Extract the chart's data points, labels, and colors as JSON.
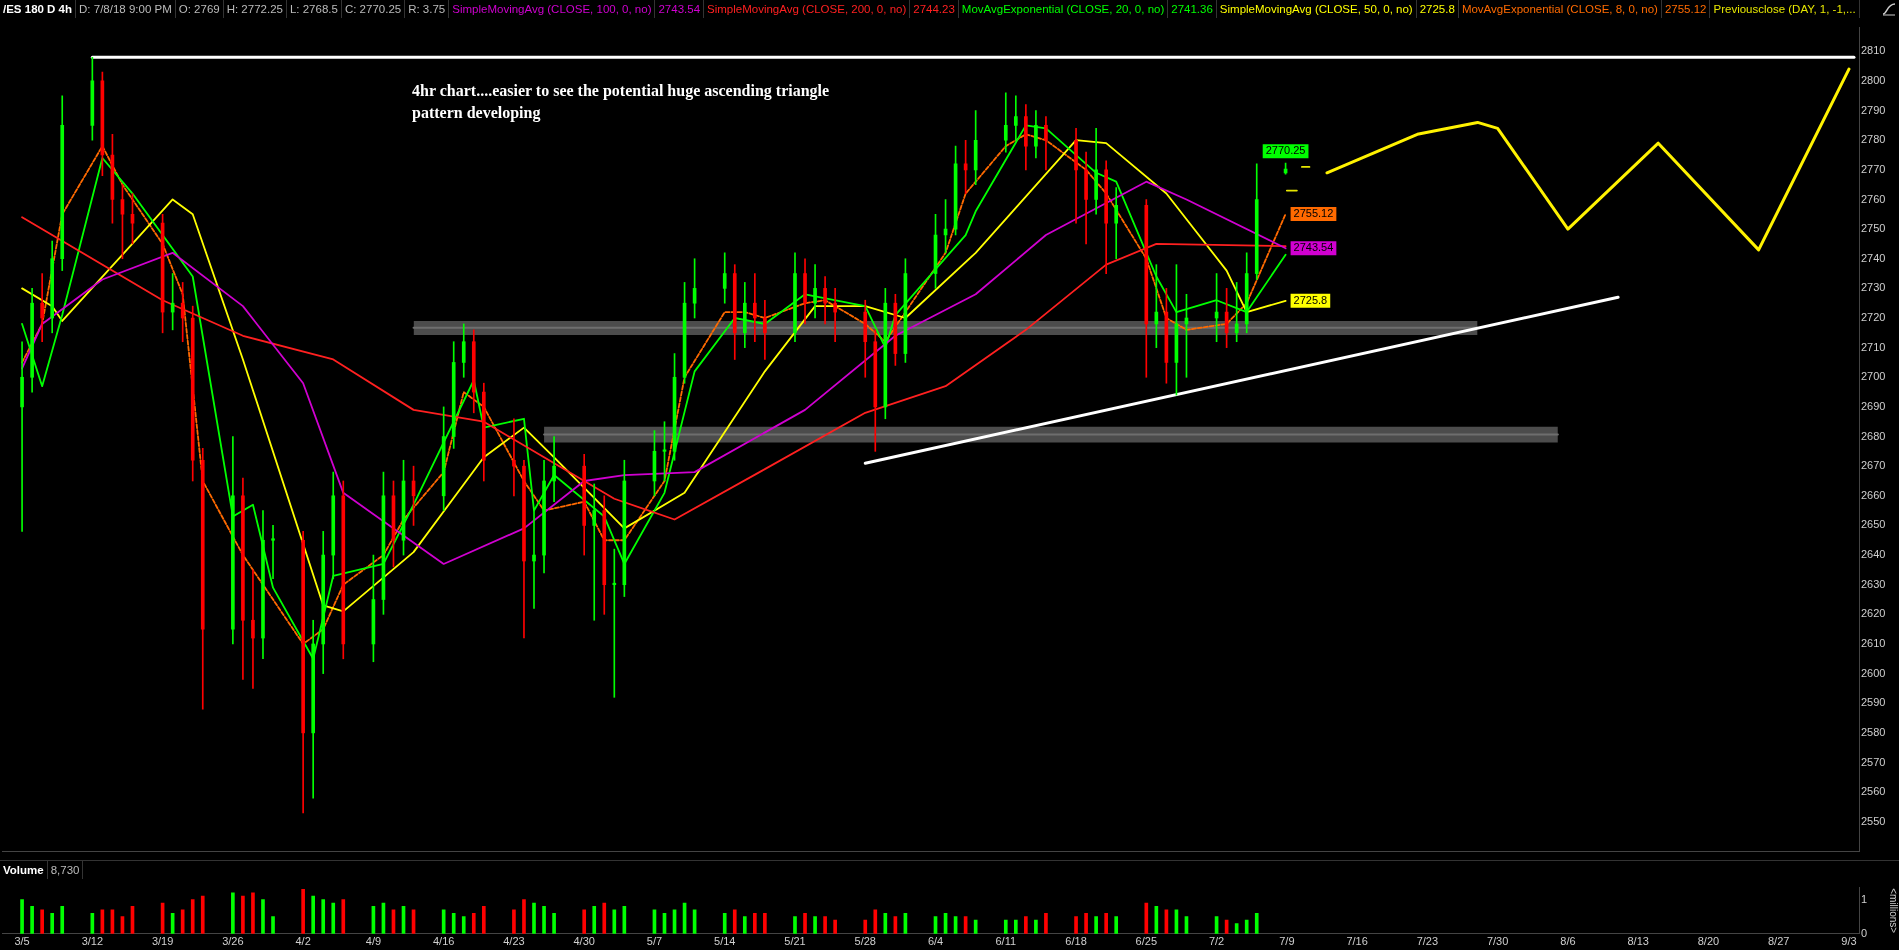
{
  "chart_data": [
    {
      "type": "candlestick",
      "title": "/ES 180 D 4h",
      "legend": "top",
      "tick_labels": "y",
      "annotations": [
        "D: 7/8/18 9:00 PM",
        "O: 2769",
        "H: 2772.25",
        "L: 2768.5",
        "C: 2770.25",
        "R: 3.75",
        "4hr chart....easier to see the potential huge ascending triangle pattern developing",
        "2743.54",
        "2744.23",
        "2741.36",
        "2725.8",
        "2755.12"
      ],
      "xlim": [
        "--03-03",
        "--09-04"
      ],
      "ylim": [
        2540,
        2818
      ],
      "yticks": [
        2550,
        2560,
        2570,
        2580,
        2590,
        2600,
        2610,
        2620,
        2630,
        2640,
        2650,
        2660,
        2670,
        2680,
        2690,
        2700,
        2710,
        2720,
        2730,
        2740,
        2750,
        2760,
        2770,
        2780,
        2790,
        2800,
        2810
      ],
      "series": [
        {
          "type": "line",
          "color": "#6e6e6e",
          "x": [
            "--04-13",
            "--07-28"
          ],
          "values": [
            2716.7,
            2716.7
          ],
          "lower": [
            2714.3,
            2714.3
          ],
          "upper": [
            2719,
            2719
          ]
        },
        {
          "type": "line",
          "color": "#6e6e6e",
          "x": [
            "--04-26",
            "--08-05"
          ],
          "values": [
            2680.7,
            2680.7
          ],
          "lower": [
            2678,
            2678
          ],
          "upper": [
            2683.3,
            2683.3
          ]
        },
        {
          "type": "line",
          "color": "#ffffff",
          "x": [
            "--03-12",
            "--09-03T12:00"
          ],
          "values": [
            2808,
            2808
          ]
        },
        {
          "type": "line",
          "color": "#ffffff",
          "x": [
            "--05-28",
            "--08-11"
          ],
          "values": [
            2671,
            2727
          ]
        },
        {
          "type": "line",
          "color": "#fff200",
          "x": [
            "--07-13",
            "--07-22",
            "--07-28",
            "--07-30",
            "--08-06",
            "--08-15",
            "--08-25",
            "--09-03"
          ],
          "values": [
            2769,
            2782,
            2786,
            2784,
            2750,
            2779,
            2743,
            2804
          ]
        },
        {
          "type": "line",
          "name": "SimpleMovingAvg (CLOSE, 100, 0, no)",
          "color": "#d000d0",
          "x": [
            "--03-05",
            "--03-07",
            "--03-13",
            "--03-20",
            "--03-27",
            "--04-02",
            "--04-06",
            "--04-16",
            "--04-24",
            "--04-30",
            "--05-04",
            "--05-11",
            "--05-22",
            "--05-31",
            "--06-08",
            "--06-15",
            "--06-25",
            "--06-29",
            "--07-08T21:00"
          ],
          "values": [
            2703,
            2718,
            2733,
            2742,
            2724,
            2698,
            2661,
            2637,
            2649,
            2665,
            2667,
            2668,
            2689,
            2714,
            2728,
            2748,
            2766,
            2760,
            2743.54
          ],
          "value_labels": [
            null,
            null,
            null,
            null,
            null,
            null,
            null,
            null,
            null,
            null,
            null,
            null,
            null,
            null,
            null,
            null,
            null,
            null,
            "2743.54"
          ]
        },
        {
          "type": "line",
          "name": "SimpleMovingAvg (CLOSE, 200, 0, no)",
          "color": "#ff2020",
          "x": [
            "--03-05",
            "--03-19",
            "--03-27",
            "--04-05",
            "--04-13",
            "--04-20",
            "--04-26",
            "--05-03",
            "--05-09",
            "--05-18",
            "--05-28",
            "--06-05",
            "--06-13",
            "--06-21",
            "--06-26",
            "--07-08T21:00"
          ],
          "values": [
            2754,
            2726,
            2714,
            2706,
            2689,
            2685,
            2673,
            2659,
            2652,
            2669,
            2688,
            2697,
            2716,
            2738,
            2745,
            2744.23
          ]
        },
        {
          "type": "line",
          "name": "MovAvgExponential (CLOSE, 20, 0, no)",
          "color": "#00ff00",
          "x": [
            "--03-05",
            "--03-07",
            "--03-09",
            "--03-13",
            "--03-16",
            "--03-22",
            "--03-26",
            "--03-28",
            "--03-30",
            "--04-03",
            "--04-05",
            "--04-10",
            "--04-13",
            "--04-19",
            "--04-20",
            "--04-24",
            "--04-25",
            "--04-27",
            "--05-02",
            "--05-04",
            "--05-08",
            "--05-11",
            "--05-15",
            "--05-18",
            "--05-22",
            "--05-28",
            "--05-30",
            "--05-31",
            "--06-07",
            "--06-08",
            "--06-13",
            "--06-15",
            "--06-20",
            "--06-22",
            "--06-26",
            "--06-28",
            "--07-02",
            "--07-05",
            "--07-08T21:00"
          ],
          "values": [
            2718,
            2697,
            2721,
            2774,
            2762,
            2734,
            2653,
            2657,
            2629,
            2605,
            2633,
            2637,
            2657,
            2699,
            2683,
            2686,
            2655,
            2667,
            2653,
            2637,
            2661,
            2702,
            2720,
            2718,
            2728,
            2724,
            2710,
            2721,
            2748,
            2756,
            2785,
            2784,
            2769,
            2766,
            2734,
            2722,
            2726,
            2722,
            2741.36
          ]
        },
        {
          "type": "line",
          "name": "SimpleMovingAvg (CLOSE, 50, 0, no)",
          "color": "#ffff00",
          "x": [
            "--03-05",
            "--03-08",
            "--03-09",
            "--03-20",
            "--03-22",
            "--03-27",
            "--04-04",
            "--04-06",
            "--04-13",
            "--04-20",
            "--04-24",
            "--04-27",
            "--05-04",
            "--05-10",
            "--05-18",
            "--05-23",
            "--05-28",
            "--06-01",
            "--06-08",
            "--06-18",
            "--06-21",
            "--06-27",
            "--07-03",
            "--07-05",
            "--07-08T21:00"
          ],
          "values": [
            2730,
            2724,
            2719,
            2760,
            2755,
            2706,
            2623,
            2621,
            2641,
            2673,
            2683,
            2673,
            2649,
            2661,
            2702,
            2724,
            2724,
            2720,
            2742,
            2780,
            2779,
            2762,
            2736,
            2722,
            2725.8
          ],
          "value_labels": [
            null,
            null,
            null,
            null,
            null,
            null,
            null,
            null,
            null,
            null,
            null,
            null,
            null,
            null,
            null,
            null,
            null,
            null,
            null,
            null,
            null,
            null,
            null,
            null,
            "2725.8"
          ]
        },
        {
          "type": "line",
          "name": "MovAvgExponential (CLOSE, 8, 0, no)",
          "color": "#ff6a00",
          "line_style": "dashed",
          "x": [
            "--03-05",
            "--03-07",
            "--03-09",
            "--03-13",
            "--03-15",
            "--03-19",
            "--03-21",
            "--03-23",
            "--03-27",
            "--03-29",
            "--04-02",
            "--04-04",
            "--04-06",
            "--04-10",
            "--04-12",
            "--04-16",
            "--04-18",
            "--04-20",
            "--04-24",
            "--04-26",
            "--04-30",
            "--05-02",
            "--05-04",
            "--05-08",
            "--05-10",
            "--05-14",
            "--05-16",
            "--05-18",
            "--05-22",
            "--05-24",
            "--05-28",
            "--05-30",
            "--06-01",
            "--06-05",
            "--06-07",
            "--06-11",
            "--06-13",
            "--06-15",
            "--06-19",
            "--06-21",
            "--06-25",
            "--06-27",
            "--06-29",
            "--07-03",
            "--07-05",
            "--07-08T21:00"
          ],
          "values": [
            2705,
            2718,
            2755,
            2778,
            2765,
            2745,
            2728,
            2665,
            2640,
            2630,
            2610,
            2615,
            2630,
            2640,
            2652,
            2668,
            2695,
            2690,
            2665,
            2655,
            2658,
            2645,
            2645,
            2665,
            2700,
            2722,
            2722,
            2720,
            2725,
            2726,
            2718,
            2712,
            2722,
            2742,
            2762,
            2778,
            2782,
            2780,
            2770,
            2762,
            2740,
            2720,
            2716,
            2718,
            2725,
            2755.12
          ],
          "value_labels": [
            null,
            null,
            null,
            null,
            null,
            null,
            null,
            null,
            null,
            null,
            null,
            null,
            null,
            null,
            null,
            null,
            null,
            null,
            null,
            null,
            null,
            null,
            null,
            null,
            null,
            null,
            null,
            null,
            null,
            null,
            null,
            null,
            null,
            null,
            null,
            null,
            null,
            null,
            null,
            null,
            null,
            null,
            null,
            null,
            null,
            "2755.12"
          ]
        },
        {
          "type": "line",
          "name": "Previousclose (DAY, 1, -1,...",
          "color": "#e6e600",
          "x": [
            "--07-09T00:00",
            "--07-10T00:00",
            "--07-10T06:00",
            "--07-10T12:00",
            "--07-11T06:00"
          ],
          "values": [
            2763,
            2763,
            null,
            2771,
            2771
          ]
        },
        {
          "type": "candlestick",
          "value_labels": [
            null,
            null,
            null,
            null,
            null,
            null,
            null,
            null,
            null,
            null,
            null,
            null,
            null,
            null,
            null,
            null,
            null,
            null,
            null,
            null,
            null,
            null,
            null,
            null,
            null,
            null,
            null,
            null,
            null,
            null,
            null,
            null,
            null,
            null,
            null,
            null,
            null,
            null,
            null,
            null,
            null,
            null,
            null,
            null,
            null,
            null,
            null,
            null,
            null,
            null,
            null,
            null,
            null,
            null,
            null,
            null,
            null,
            null,
            null,
            null,
            null,
            null,
            null,
            null,
            null,
            null,
            null,
            null,
            null,
            null,
            null,
            null,
            null,
            null,
            null,
            null,
            null,
            null,
            null,
            null,
            null,
            null,
            null,
            null,
            null,
            null,
            null,
            null,
            null,
            null,
            "2770.25"
          ],
          "x": [
            "--03-05",
            "--03-06",
            "--03-07",
            "--03-08",
            "--03-09",
            "--03-12",
            "--03-13",
            "--03-14",
            "--03-15",
            "--03-16",
            "--03-19",
            "--03-20",
            "--03-21",
            "--03-22",
            "--03-23",
            "--03-26",
            "--03-27",
            "--03-28",
            "--03-29",
            "--03-30",
            "--04-02",
            "--04-03",
            "--04-04",
            "--04-05",
            "--04-06",
            "--04-09",
            "--04-10",
            "--04-11",
            "--04-12",
            "--04-13",
            "--04-16",
            "--04-17",
            "--04-18",
            "--04-19",
            "--04-20",
            "--04-23",
            "--04-24",
            "--04-25",
            "--04-26",
            "--04-27",
            "--04-30",
            "--05-01",
            "--05-02",
            "--05-03",
            "--05-04",
            "--05-07",
            "--05-08",
            "--05-09",
            "--05-10",
            "--05-11",
            "--05-14",
            "--05-15",
            "--05-16",
            "--05-17",
            "--05-18",
            "--05-21",
            "--05-22",
            "--05-23",
            "--05-24",
            "--05-25",
            "--05-28",
            "--05-29",
            "--05-30",
            "--05-31",
            "--06-01",
            "--06-04",
            "--06-05",
            "--06-06",
            "--06-07",
            "--06-08",
            "--06-11",
            "--06-12",
            "--06-13",
            "--06-14",
            "--06-15",
            "--06-18",
            "--06-19",
            "--06-20",
            "--06-21",
            "--06-22",
            "--06-25",
            "--06-26",
            "--06-27",
            "--06-28",
            "--06-29",
            "--07-02",
            "--07-03",
            "--07-04",
            "--07-05",
            "--07-06",
            "--07-08T21:00"
          ],
          "colors": [
            "#00ff00",
            "#00ff00",
            "#ff0000",
            "#00ff00",
            "#00ff00",
            "#00ff00",
            "#ff0000",
            "#ff0000",
            "#ff0000",
            "#ff0000",
            "#ff0000",
            "#00ff00",
            "#ff0000",
            "#ff0000",
            "#ff0000",
            "#00ff00",
            "#ff0000",
            "#ff0000",
            "#00ff00",
            "#00ff00",
            "#ff0000",
            "#00ff00",
            "#00ff00",
            "#00ff00",
            "#ff0000",
            "#00ff00",
            "#00ff00",
            "#ff0000",
            "#00ff00",
            "#ff0000",
            "#00ff00",
            "#00ff00",
            "#00ff00",
            "#ff0000",
            "#ff0000",
            "#ff0000",
            "#ff0000",
            "#00ff00",
            "#00ff00",
            "#00ff00",
            "#ff0000",
            "#00ff00",
            "#ff0000",
            "#00ff00",
            "#00ff00",
            "#00ff00",
            "#00ff00",
            "#00ff00",
            "#00ff00",
            "#00ff00",
            "#00ff00",
            "#ff0000",
            "#00ff00",
            "#ff0000",
            "#ff0000",
            "#00ff00",
            "#ff0000",
            "#00ff00",
            "#ff0000",
            "#ff0000",
            "#ff0000",
            "#ff0000",
            "#00ff00",
            "#ff0000",
            "#00ff00",
            "#00ff00",
            "#00ff00",
            "#00ff00",
            "#ff0000",
            "#00ff00",
            "#00ff00",
            "#00ff00",
            "#ff0000",
            "#00ff00",
            "#ff0000",
            "#ff0000",
            "#ff0000",
            "#00ff00",
            "#ff0000",
            "#00ff00",
            "#ff0000",
            "#00ff00",
            "#ff0000",
            "#00ff00",
            "#00ff00",
            "#00ff00",
            "#ff0000",
            "#00ff00",
            "#00ff00",
            "#00ff00",
            "#00ff00"
          ],
          "ohlc": [
            [
              2690,
              2712,
              2648,
              2700
            ],
            [
              2700,
              2730,
              2695,
              2725
            ],
            [
              2725,
              2735,
              2712,
              2720
            ],
            [
              2720,
              2746,
              2715,
              2740
            ],
            [
              2740,
              2795,
              2736,
              2785
            ],
            [
              2785,
              2808,
              2780,
              2800
            ],
            [
              2800,
              2803,
              2768,
              2775
            ],
            [
              2775,
              2782,
              2752,
              2760
            ],
            [
              2760,
              2765,
              2740,
              2755
            ],
            [
              2755,
              2762,
              2745,
              2752
            ],
            [
              2752,
              2755,
              2715,
              2722
            ],
            [
              2722,
              2735,
              2716,
              2725
            ],
            [
              2725,
              2732,
              2712,
              2720
            ],
            [
              2720,
              2724,
              2665,
              2672
            ],
            [
              2672,
              2676,
              2588,
              2615
            ],
            [
              2615,
              2680,
              2610,
              2660
            ],
            [
              2660,
              2666,
              2598,
              2618
            ],
            [
              2618,
              2635,
              2595,
              2612
            ],
            [
              2612,
              2655,
              2605,
              2645
            ],
            [
              2645,
              2650,
              2632,
              2645
            ],
            [
              2645,
              2648,
              2553,
              2580
            ],
            [
              2580,
              2618,
              2558,
              2610
            ],
            [
              2610,
              2648,
              2600,
              2640
            ],
            [
              2640,
              2668,
              2632,
              2660
            ],
            [
              2660,
              2665,
              2605,
              2610
            ],
            [
              2610,
              2640,
              2604,
              2625
            ],
            [
              2625,
              2668,
              2620,
              2660
            ],
            [
              2660,
              2665,
              2636,
              2645
            ],
            [
              2645,
              2672,
              2640,
              2665
            ],
            [
              2665,
              2670,
              2650,
              2660
            ],
            [
              2660,
              2690,
              2655,
              2680
            ],
            [
              2680,
              2712,
              2676,
              2705
            ],
            [
              2705,
              2718,
              2700,
              2712
            ],
            [
              2712,
              2716,
              2688,
              2695
            ],
            [
              2695,
              2698,
              2665,
              2672
            ],
            [
              2672,
              2686,
              2660,
              2670
            ],
            [
              2670,
              2672,
              2612,
              2638
            ],
            [
              2638,
              2655,
              2622,
              2640
            ],
            [
              2640,
              2672,
              2634,
              2665
            ],
            [
              2665,
              2680,
              2658,
              2670
            ],
            [
              2670,
              2674,
              2640,
              2650
            ],
            [
              2650,
              2664,
              2618,
              2655
            ],
            [
              2655,
              2660,
              2620,
              2630
            ],
            [
              2630,
              2642,
              2592,
              2630
            ],
            [
              2630,
              2672,
              2626,
              2665
            ],
            [
              2665,
              2682,
              2660,
              2675
            ],
            [
              2675,
              2685,
              2665,
              2675
            ],
            [
              2675,
              2708,
              2672,
              2700
            ],
            [
              2700,
              2732,
              2698,
              2725
            ],
            [
              2725,
              2740,
              2720,
              2730
            ],
            [
              2730,
              2742,
              2725,
              2735
            ],
            [
              2735,
              2738,
              2706,
              2715
            ],
            [
              2715,
              2732,
              2710,
              2725
            ],
            [
              2725,
              2735,
              2712,
              2720
            ],
            [
              2720,
              2726,
              2706,
              2715
            ],
            [
              2715,
              2742,
              2712,
              2735
            ],
            [
              2735,
              2740,
              2718,
              2725
            ],
            [
              2725,
              2738,
              2720,
              2730
            ],
            [
              2730,
              2734,
              2718,
              2725
            ],
            [
              2725,
              2730,
              2712,
              2722
            ],
            [
              2722,
              2726,
              2700,
              2712
            ],
            [
              2712,
              2716,
              2675,
              2690
            ],
            [
              2690,
              2730,
              2686,
              2725
            ],
            [
              2725,
              2728,
              2704,
              2708
            ],
            [
              2708,
              2740,
              2705,
              2735
            ],
            [
              2735,
              2755,
              2730,
              2748
            ],
            [
              2748,
              2760,
              2742,
              2750
            ],
            [
              2750,
              2778,
              2748,
              2772
            ],
            [
              2772,
              2780,
              2762,
              2770
            ],
            [
              2770,
              2790,
              2765,
              2780
            ],
            [
              2780,
              2796,
              2776,
              2785
            ],
            [
              2785,
              2795,
              2780,
              2788
            ],
            [
              2788,
              2792,
              2770,
              2778
            ],
            [
              2778,
              2790,
              2774,
              2785
            ],
            [
              2785,
              2788,
              2770,
              2780
            ],
            [
              2780,
              2784,
              2752,
              2770
            ],
            [
              2770,
              2776,
              2745,
              2760
            ],
            [
              2760,
              2784,
              2755,
              2770
            ],
            [
              2770,
              2773,
              2735,
              2752
            ],
            [
              2752,
              2764,
              2740,
              2758
            ],
            [
              2758,
              2760,
              2700,
              2718
            ],
            [
              2718,
              2738,
              2710,
              2722
            ],
            [
              2722,
              2730,
              2698,
              2705
            ],
            [
              2705,
              2738,
              2694,
              2718
            ],
            [
              2718,
              2728,
              2700,
              2720
            ],
            [
              2720,
              2735,
              2712,
              2722
            ],
            [
              2722,
              2730,
              2710,
              2715
            ],
            [
              2715,
              2732,
              2712,
              2718
            ],
            [
              2718,
              2742,
              2715,
              2735
            ],
            [
              2735,
              2772,
              2733,
              2760
            ],
            [
              2769,
              2772.25,
              2768.5,
              2770.25
            ]
          ]
        }
      ]
    },
    {
      "type": "bar",
      "title": "Volume",
      "annotations": [
        "8,730"
      ],
      "ylabel": "<millions>",
      "xlim": [
        "--03-03",
        "--09-04"
      ],
      "xticks": [
        {
          "value": "--03-05",
          "label": "3/5"
        },
        {
          "value": "--03-12",
          "label": "3/12"
        },
        {
          "value": "--03-19",
          "label": "3/19"
        },
        {
          "value": "--03-26",
          "label": "3/26"
        },
        {
          "value": "--04-02",
          "label": "4/2"
        },
        {
          "value": "--04-09",
          "label": "4/9"
        },
        {
          "value": "--04-16",
          "label": "4/16"
        },
        {
          "value": "--04-23",
          "label": "4/23"
        },
        {
          "value": "--04-30",
          "label": "4/30"
        },
        {
          "value": "--05-07",
          "label": "5/7"
        },
        {
          "value": "--05-14",
          "label": "5/14"
        },
        {
          "value": "--05-21",
          "label": "5/21"
        },
        {
          "value": "--05-28",
          "label": "5/28"
        },
        {
          "value": "--06-04",
          "label": "6/4"
        },
        {
          "value": "--06-11",
          "label": "6/11"
        },
        {
          "value": "--06-18",
          "label": "6/18"
        },
        {
          "value": "--06-25",
          "label": "6/25"
        },
        {
          "value": "--07-02",
          "label": "7/2"
        },
        {
          "value": "--07-09",
          "label": "7/9"
        },
        {
          "value": "--07-16",
          "label": "7/16"
        },
        {
          "value": "--07-23",
          "label": "7/23"
        },
        {
          "value": "--07-30",
          "label": "7/30"
        },
        {
          "value": "--08-06",
          "label": "8/6"
        },
        {
          "value": "--08-13",
          "label": "8/13"
        },
        {
          "value": "--08-20",
          "label": "8/20"
        },
        {
          "value": "--08-27",
          "label": "8/27"
        },
        {
          "value": "--09-03",
          "label": "9/3"
        }
      ],
      "ylim": [
        0,
        1.35
      ],
      "yticks": [
        0,
        1
      ],
      "x": [
        "--03-05",
        "--03-06",
        "--03-07",
        "--03-08",
        "--03-09",
        "--03-12",
        "--03-13",
        "--03-14",
        "--03-15",
        "--03-16",
        "--03-19",
        "--03-20",
        "--03-21",
        "--03-22",
        "--03-23",
        "--03-26",
        "--03-27",
        "--03-28",
        "--03-29",
        "--03-30",
        "--04-02",
        "--04-03",
        "--04-04",
        "--04-05",
        "--04-06",
        "--04-09",
        "--04-10",
        "--04-11",
        "--04-12",
        "--04-13",
        "--04-16",
        "--04-17",
        "--04-18",
        "--04-19",
        "--04-20",
        "--04-23",
        "--04-24",
        "--04-25",
        "--04-26",
        "--04-27",
        "--04-30",
        "--05-01",
        "--05-02",
        "--05-03",
        "--05-04",
        "--05-07",
        "--05-08",
        "--05-09",
        "--05-10",
        "--05-11",
        "--05-14",
        "--05-15",
        "--05-16",
        "--05-17",
        "--05-18",
        "--05-21",
        "--05-22",
        "--05-23",
        "--05-24",
        "--05-25",
        "--05-28",
        "--05-29",
        "--05-30",
        "--05-31",
        "--06-01",
        "--06-04",
        "--06-05",
        "--06-06",
        "--06-07",
        "--06-08",
        "--06-11",
        "--06-12",
        "--06-13",
        "--06-14",
        "--06-15",
        "--06-18",
        "--06-19",
        "--06-20",
        "--06-21",
        "--06-22",
        "--06-25",
        "--06-26",
        "--06-27",
        "--06-28",
        "--06-29",
        "--07-02",
        "--07-03",
        "--07-04",
        "--07-05",
        "--07-06"
      ],
      "values": [
        1.0,
        0.8,
        0.7,
        0.6,
        0.8,
        0.6,
        0.7,
        0.7,
        0.5,
        0.8,
        0.9,
        0.6,
        0.7,
        1.0,
        1.1,
        1.2,
        1.1,
        1.2,
        1.0,
        0.5,
        1.3,
        1.1,
        1.0,
        0.9,
        1.0,
        0.8,
        0.9,
        0.7,
        0.8,
        0.7,
        0.7,
        0.6,
        0.5,
        0.6,
        0.8,
        0.7,
        1.0,
        0.9,
        0.8,
        0.6,
        0.7,
        0.8,
        0.9,
        0.7,
        0.8,
        0.7,
        0.6,
        0.7,
        0.9,
        0.7,
        0.6,
        0.7,
        0.5,
        0.6,
        0.6,
        0.5,
        0.6,
        0.5,
        0.5,
        0.4,
        0.4,
        0.7,
        0.6,
        0.5,
        0.6,
        0.5,
        0.6,
        0.5,
        0.5,
        0.4,
        0.4,
        0.4,
        0.5,
        0.4,
        0.6,
        0.5,
        0.6,
        0.5,
        0.6,
        0.5,
        0.9,
        0.8,
        0.7,
        0.7,
        0.5,
        0.5,
        0.4,
        0.3,
        0.4,
        0.6
      ],
      "colors": [
        "#00ff00",
        "#00ff00",
        "#ff0000",
        "#00ff00",
        "#00ff00",
        "#00ff00",
        "#ff0000",
        "#ff0000",
        "#ff0000",
        "#ff0000",
        "#ff0000",
        "#00ff00",
        "#ff0000",
        "#ff0000",
        "#ff0000",
        "#00ff00",
        "#ff0000",
        "#ff0000",
        "#00ff00",
        "#00ff00",
        "#ff0000",
        "#00ff00",
        "#00ff00",
        "#00ff00",
        "#ff0000",
        "#00ff00",
        "#00ff00",
        "#ff0000",
        "#00ff00",
        "#ff0000",
        "#00ff00",
        "#00ff00",
        "#00ff00",
        "#ff0000",
        "#ff0000",
        "#ff0000",
        "#ff0000",
        "#00ff00",
        "#00ff00",
        "#00ff00",
        "#ff0000",
        "#00ff00",
        "#ff0000",
        "#00ff00",
        "#00ff00",
        "#00ff00",
        "#00ff00",
        "#00ff00",
        "#00ff00",
        "#00ff00",
        "#00ff00",
        "#ff0000",
        "#00ff00",
        "#ff0000",
        "#ff0000",
        "#00ff00",
        "#ff0000",
        "#00ff00",
        "#ff0000",
        "#ff0000",
        "#ff0000",
        "#ff0000",
        "#00ff00",
        "#ff0000",
        "#00ff00",
        "#00ff00",
        "#00ff00",
        "#00ff00",
        "#ff0000",
        "#00ff00",
        "#00ff00",
        "#00ff00",
        "#ff0000",
        "#00ff00",
        "#ff0000",
        "#ff0000",
        "#ff0000",
        "#00ff00",
        "#ff0000",
        "#00ff00",
        "#ff0000",
        "#00ff00",
        "#ff0000",
        "#00ff00",
        "#00ff00",
        "#00ff00",
        "#ff0000",
        "#00ff00",
        "#00ff00",
        "#00ff00"
      ]
    }
  ]
}
